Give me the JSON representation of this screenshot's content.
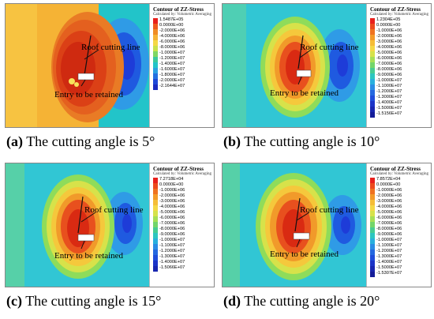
{
  "panels": [
    {
      "letter": "a",
      "caption": "The cutting angle is 5°",
      "legend_title": "Contour of ZZ-Stress",
      "legend_subtitle": "Calculated by: Volumetric Averaging",
      "legend_values": [
        "1.5487E+05",
        "0.0000E+00",
        "-2.0000E+06",
        "-4.0000E+06",
        "-6.0000E+06",
        "-8.0000E+06",
        "-1.0000E+07",
        "-1.2000E+07",
        "-1.4000E+07",
        "-1.6000E+07",
        "-1.8000E+07",
        "-2.0000E+07",
        "-2.1644E+07"
      ],
      "roof_label": "Roof cutting line",
      "entry_label": "Entry to be retained"
    },
    {
      "letter": "b",
      "caption": "The cutting angle is 10°",
      "legend_title": "Contour of ZZ-Stress",
      "legend_subtitle": "Calculated by: Volumetric Averaging",
      "legend_values": [
        "1.2304E+05",
        "0.0000E+00",
        "-1.0000E+06",
        "-2.0000E+06",
        "-3.0000E+06",
        "-4.0000E+06",
        "-5.0000E+06",
        "-6.0000E+06",
        "-7.0000E+06",
        "-8.0000E+06",
        "-9.0000E+06",
        "-1.0000E+07",
        "-1.1000E+07",
        "-1.2000E+07",
        "-1.3000E+07",
        "-1.4000E+07",
        "-1.5000E+07",
        "-1.5156E+07"
      ],
      "roof_label": "Roof cutting line",
      "entry_label": "Entry to be retained"
    },
    {
      "letter": "c",
      "caption": "The cutting angle is 15°",
      "legend_title": "Contour of ZZ-Stress",
      "legend_subtitle": "Calculated by: Volumetric Averaging",
      "legend_values": [
        "7.2718E+04",
        "0.0000E+00",
        "-1.0000E+06",
        "-2.0000E+06",
        "-3.0000E+06",
        "-4.0000E+06",
        "-5.0000E+06",
        "-6.0000E+06",
        "-7.0000E+06",
        "-8.0000E+06",
        "-9.0000E+06",
        "-1.0000E+07",
        "-1.1000E+07",
        "-1.2000E+07",
        "-1.3000E+07",
        "-1.4000E+07",
        "-1.5066E+07"
      ],
      "roof_label": "Roof cutting line",
      "entry_label": "Entry to be retained"
    },
    {
      "letter": "d",
      "caption": "The cutting angle is 20°",
      "legend_title": "Contour of ZZ-Stress",
      "legend_subtitle": "Calculated by: Volumetric Averaging",
      "legend_values": [
        "7.8572E+04",
        "0.0000E+00",
        "-1.0000E+06",
        "-2.0000E+06",
        "-3.0000E+06",
        "-4.0000E+06",
        "-5.0000E+06",
        "-6.0000E+06",
        "-7.0000E+06",
        "-8.0000E+06",
        "-9.0000E+06",
        "-1.0000E+07",
        "-1.1000E+07",
        "-1.2000E+07",
        "-1.3000E+07",
        "-1.4000E+07",
        "-1.5000E+07",
        "-1.5307E+07"
      ],
      "roof_label": "Roof cutting line",
      "entry_label": "Entry to be retained"
    }
  ],
  "colors": {
    "background_field": "#31c6d4",
    "high_stress": "#e8501e",
    "core": "#d92a12",
    "low_stress": "#1e3cd8",
    "entry": "#ffffff"
  }
}
